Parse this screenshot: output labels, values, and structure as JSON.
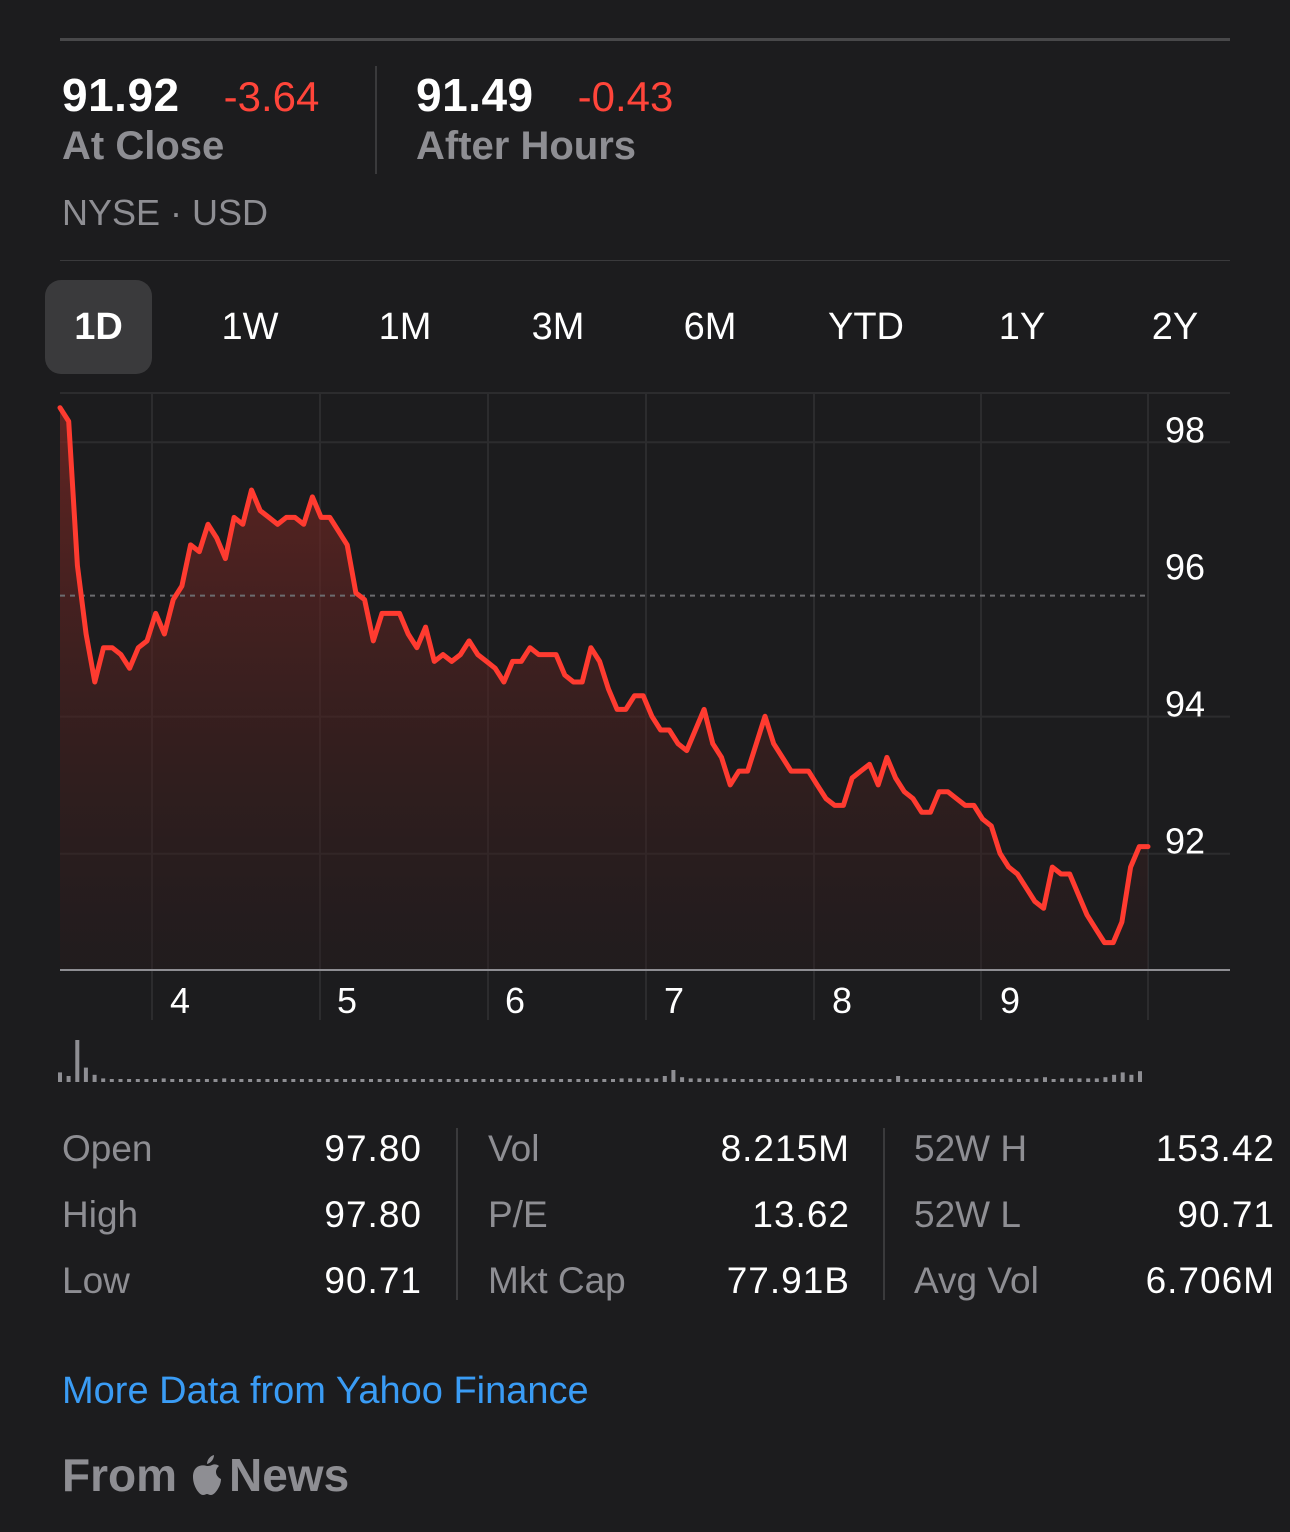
{
  "quote": {
    "close_price": "91.92",
    "close_change": "-3.64",
    "close_label": "At Close",
    "after_price": "91.49",
    "after_change": "-0.43",
    "after_label": "After Hours",
    "exchange": "NYSE · USD"
  },
  "ranges": [
    "1D",
    "1W",
    "1M",
    "3M",
    "6M",
    "YTD",
    "1Y",
    "2Y"
  ],
  "selected_range": "1D",
  "chart_data": {
    "type": "area",
    "x_tick_labels": [
      "4",
      "5",
      "6",
      "7",
      "8",
      "9"
    ],
    "y_tick_labels": [
      "98",
      "96",
      "94",
      "92"
    ],
    "ylim": [
      90.1,
      98.5
    ],
    "reference_line": 95.56,
    "series": [
      {
        "values": [
          98.3,
          98.1,
          96.0,
          95.0,
          94.3,
          94.8,
          94.8,
          94.7,
          94.5,
          94.8,
          94.9,
          95.3,
          95.0,
          95.5,
          95.7,
          96.3,
          96.2,
          96.6,
          96.4,
          96.1,
          96.7,
          96.6,
          97.1,
          96.8,
          96.7,
          96.6,
          96.7,
          96.7,
          96.6,
          97.0,
          96.7,
          96.7,
          96.5,
          96.3,
          95.6,
          95.5,
          94.9,
          95.3,
          95.3,
          95.3,
          95.0,
          94.8,
          95.1,
          94.6,
          94.7,
          94.6,
          94.7,
          94.9,
          94.7,
          94.6,
          94.5,
          94.3,
          94.6,
          94.6,
          94.8,
          94.7,
          94.7,
          94.7,
          94.4,
          94.3,
          94.3,
          94.8,
          94.6,
          94.2,
          93.9,
          93.9,
          94.1,
          94.1,
          93.8,
          93.6,
          93.6,
          93.4,
          93.3,
          93.6,
          93.9,
          93.4,
          93.2,
          92.8,
          93.0,
          93.0,
          93.4,
          93.8,
          93.4,
          93.2,
          93.0,
          93.0,
          93.0,
          92.8,
          92.6,
          92.5,
          92.5,
          92.9,
          93.0,
          93.1,
          92.8,
          93.2,
          92.9,
          92.7,
          92.6,
          92.4,
          92.4,
          92.7,
          92.7,
          92.6,
          92.5,
          92.5,
          92.3,
          92.2,
          91.8,
          91.6,
          91.5,
          91.3,
          91.1,
          91.0,
          91.6,
          91.5,
          91.5,
          91.2,
          90.9,
          90.7,
          90.5,
          90.5,
          90.8,
          91.6,
          91.9,
          91.9
        ]
      }
    ],
    "volume": [
      0.08,
      0.05,
      0.35,
      0.12,
      0.06,
      0.03,
      0.02,
      0.02,
      0.02,
      0.02,
      0.02,
      0.02,
      0.03,
      0.02,
      0.02,
      0.02,
      0.02,
      0.02,
      0.02,
      0.03,
      0.02,
      0.02,
      0.02,
      0.02,
      0.02,
      0.02,
      0.02,
      0.02,
      0.02,
      0.02,
      0.02,
      0.02,
      0.02,
      0.02,
      0.02,
      0.02,
      0.02,
      0.02,
      0.02,
      0.02,
      0.02,
      0.02,
      0.02,
      0.02,
      0.02,
      0.02,
      0.02,
      0.02,
      0.02,
      0.02,
      0.02,
      0.02,
      0.02,
      0.02,
      0.02,
      0.02,
      0.02,
      0.02,
      0.02,
      0.02,
      0.02,
      0.02,
      0.02,
      0.02,
      0.02,
      0.03,
      0.03,
      0.03,
      0.03,
      0.03,
      0.05,
      0.1,
      0.04,
      0.03,
      0.03,
      0.03,
      0.03,
      0.03,
      0.02,
      0.02,
      0.02,
      0.02,
      0.02,
      0.02,
      0.02,
      0.02,
      0.02,
      0.03,
      0.02,
      0.02,
      0.02,
      0.02,
      0.02,
      0.02,
      0.02,
      0.02,
      0.02,
      0.05,
      0.02,
      0.02,
      0.02,
      0.02,
      0.02,
      0.02,
      0.02,
      0.02,
      0.02,
      0.02,
      0.02,
      0.02,
      0.03,
      0.02,
      0.02,
      0.03,
      0.04,
      0.02,
      0.03,
      0.03,
      0.03,
      0.03,
      0.03,
      0.04,
      0.06,
      0.08,
      0.06,
      0.09
    ]
  },
  "stats": [
    {
      "label": "Open",
      "value": "97.80"
    },
    {
      "label": "High",
      "value": "97.80"
    },
    {
      "label": "Low",
      "value": "90.71"
    },
    {
      "label": "Vol",
      "value": "8.215M"
    },
    {
      "label": "P/E",
      "value": "13.62"
    },
    {
      "label": "Mkt Cap",
      "value": "77.91B"
    },
    {
      "label": "52W H",
      "value": "153.42"
    },
    {
      "label": "52W L",
      "value": "90.71"
    },
    {
      "label": "Avg Vol",
      "value": "6.706M"
    }
  ],
  "more_data_link": "More Data from Yahoo Finance",
  "news": {
    "from": "From",
    "brand": "News"
  },
  "colors": {
    "line": "#ff3b30",
    "negative": "#ff453a",
    "link": "#3a9cf5",
    "background": "#1c1c1e"
  }
}
